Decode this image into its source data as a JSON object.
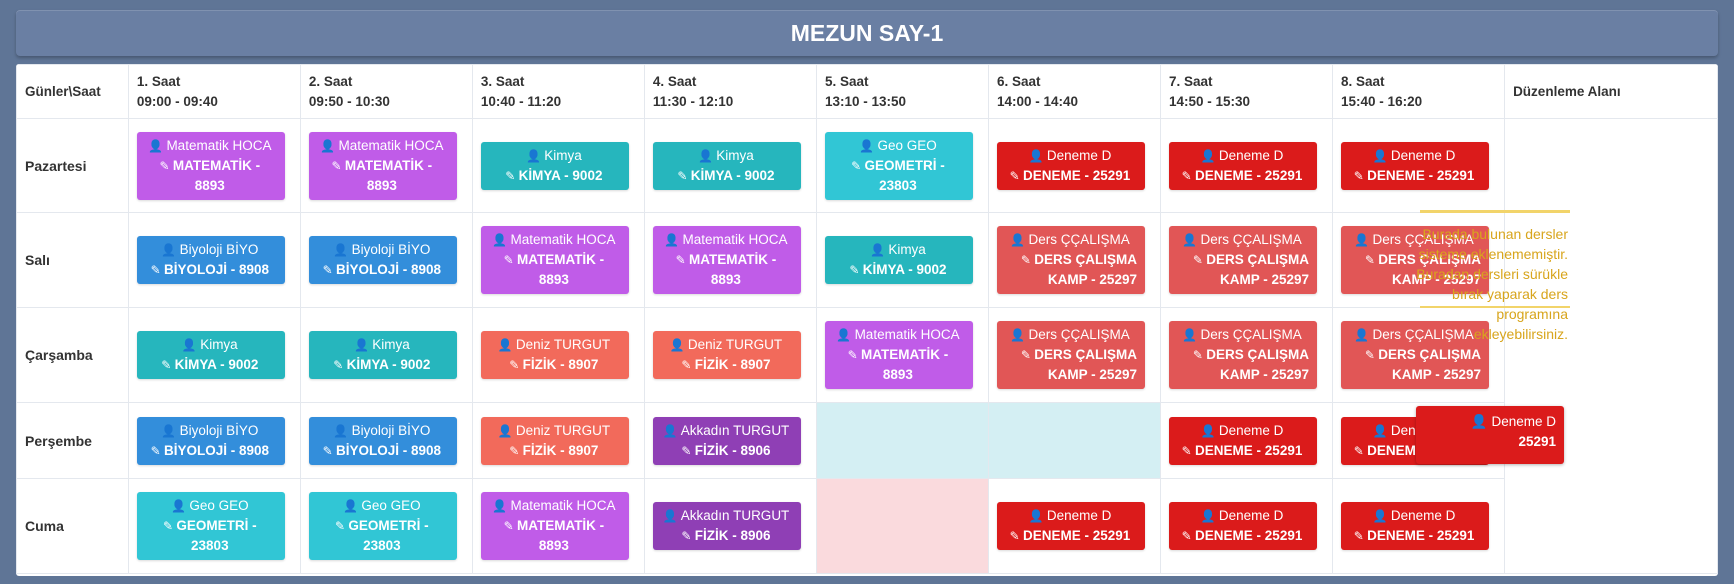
{
  "title": "MEZUN SAY-1",
  "header": {
    "corner": "Günler\\Saat",
    "slots": [
      {
        "name": "1. Saat",
        "time": "09:00 - 09:40"
      },
      {
        "name": "2. Saat",
        "time": "09:50 - 10:30"
      },
      {
        "name": "3. Saat",
        "time": "10:40 - 11:20"
      },
      {
        "name": "4. Saat",
        "time": "11:30 - 12:10"
      },
      {
        "name": "5. Saat",
        "time": "13:10 - 13:50"
      },
      {
        "name": "6. Saat",
        "time": "14:00 - 14:40"
      },
      {
        "name": "7. Saat",
        "time": "14:50 - 15:30"
      },
      {
        "name": "8. Saat",
        "time": "15:40 - 16:20"
      }
    ],
    "edit": "Düzenleme Alanı"
  },
  "days": [
    "Pazartesi",
    "Salı",
    "Çarşamba",
    "Perşembe",
    "Cuma"
  ],
  "lessons": {
    "mat": {
      "teacher": "Matematik HOCA",
      "course": "MATEMATİK - 8893",
      "color": "#c05ce8"
    },
    "kim": {
      "teacher": "Kimya",
      "course": "KİMYA - 9002",
      "color": "#26b6bd"
    },
    "geo": {
      "teacher": "Geo GEO",
      "course": "GEOMETRİ - 23803",
      "color": "#31c6d5"
    },
    "den": {
      "teacher": "Deneme D",
      "course": "DENEME - 25291",
      "color": "#db1b1b"
    },
    "biy": {
      "teacher": "Biyoloji BİYO",
      "course": "BİYOLOJİ - 8908",
      "color": "#338edb"
    },
    "ders": {
      "teacher": "Ders ÇÇALIŞMA",
      "course": "DERS ÇALIŞMA KAMP - 25297",
      "color": "#e15656"
    },
    "fiz7": {
      "teacher": "Deniz TURGUT",
      "course": "FİZİK - 8907",
      "color": "#f26a5b"
    },
    "fiz6": {
      "teacher": "Akkadın TURGUT",
      "course": "FİZİK - 8906",
      "color": "#8f3fb5"
    }
  },
  "edit_area": {
    "text": "Burada bulunan dersler sisteme eklenememiştir. Buradan dersleri sürükle bırak yaparak ders programına ekleyebilirsiniz."
  },
  "drag": {
    "teacher": "Deneme D",
    "course": "25291"
  }
}
